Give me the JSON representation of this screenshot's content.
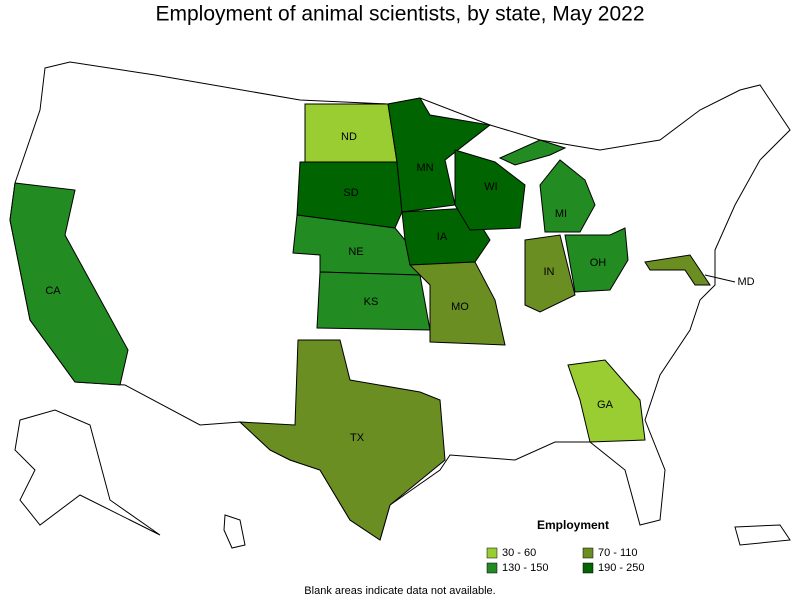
{
  "title": "Employment of animal scientists, by state, May 2022",
  "legend": {
    "title": "Employment",
    "items": [
      {
        "label": "30 - 60",
        "color": "#9acd32"
      },
      {
        "label": "70 - 110",
        "color": "#6b8e23"
      },
      {
        "label": "130 - 150",
        "color": "#228b22"
      },
      {
        "label": "190 - 250",
        "color": "#006400"
      }
    ]
  },
  "states": [
    {
      "abbr": "CA",
      "color": "#228b22"
    },
    {
      "abbr": "ND",
      "color": "#9acd32"
    },
    {
      "abbr": "SD",
      "color": "#006400"
    },
    {
      "abbr": "NE",
      "color": "#228b22"
    },
    {
      "abbr": "KS",
      "color": "#228b22"
    },
    {
      "abbr": "MN",
      "color": "#006400"
    },
    {
      "abbr": "IA",
      "color": "#006400"
    },
    {
      "abbr": "WI",
      "color": "#006400"
    },
    {
      "abbr": "MO",
      "color": "#6b8e23"
    },
    {
      "abbr": "IN",
      "color": "#6b8e23"
    },
    {
      "abbr": "OH",
      "color": "#228b22"
    },
    {
      "abbr": "MI",
      "color": "#228b22"
    },
    {
      "abbr": "TX",
      "color": "#6b8e23"
    },
    {
      "abbr": "GA",
      "color": "#9acd32"
    },
    {
      "abbr": "MD",
      "color": "#6b8e23"
    }
  ],
  "note": "Blank areas indicate data not available."
}
